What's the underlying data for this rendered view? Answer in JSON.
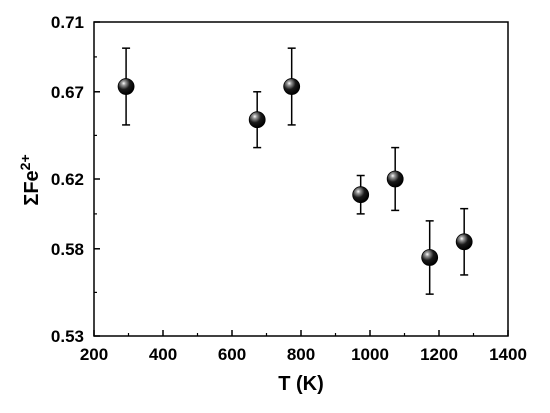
{
  "chart_data": {
    "type": "scatter",
    "title": "",
    "xlabel": "T (K)",
    "ylabel": {
      "base": "ΣFe",
      "sup": "2+"
    },
    "xlim": [
      200,
      1400
    ],
    "ylim": [
      0.53,
      0.71
    ],
    "xticks": [
      200,
      400,
      600,
      800,
      1000,
      1200,
      1400
    ],
    "yticks": [
      0.53,
      0.58,
      0.62,
      0.67,
      0.71
    ],
    "ytick_labels": [
      "0.53",
      "0.58",
      "0.62",
      "0.67",
      "0.71"
    ],
    "grid": false,
    "legend": false,
    "marker": "sphere",
    "marker_color": "#000000",
    "points": [
      {
        "x": 293,
        "y": 0.673,
        "err": 0.022
      },
      {
        "x": 673,
        "y": 0.654,
        "err": 0.016
      },
      {
        "x": 773,
        "y": 0.673,
        "err": 0.022
      },
      {
        "x": 973,
        "y": 0.611,
        "err": 0.011
      },
      {
        "x": 1073,
        "y": 0.62,
        "err": 0.018
      },
      {
        "x": 1173,
        "y": 0.575,
        "err": 0.021
      },
      {
        "x": 1273,
        "y": 0.584,
        "err": 0.019
      }
    ]
  }
}
